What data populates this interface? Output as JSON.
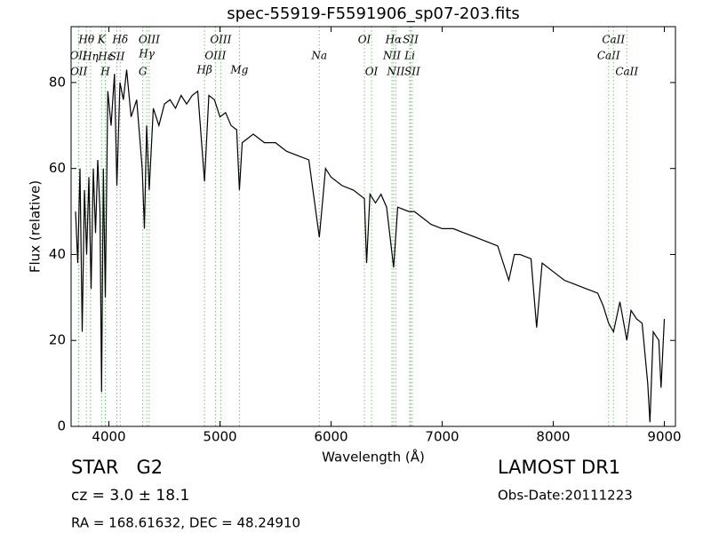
{
  "chart_data": {
    "type": "line",
    "title": "spec-55919-F5591906_sp07-203.fits",
    "x_label": "Wavelength (Å)",
    "y_label": "Flux (relative)",
    "xlim": [
      3660,
      9100
    ],
    "ylim": [
      0,
      93
    ],
    "xticks": [
      4000,
      5000,
      6000,
      7000,
      8000,
      9000
    ],
    "yticks": [
      0,
      20,
      40,
      60,
      80
    ],
    "color": "#000000",
    "x": [
      3700,
      3720,
      3740,
      3760,
      3780,
      3800,
      3820,
      3840,
      3860,
      3880,
      3900,
      3920,
      3934,
      3950,
      3968,
      3990,
      4020,
      4050,
      4072,
      4100,
      4130,
      4160,
      4200,
      4250,
      4300,
      4320,
      4340,
      4363,
      4400,
      4450,
      4500,
      4550,
      4600,
      4650,
      4700,
      4750,
      4800,
      4861,
      4900,
      4950,
      5000,
      5050,
      5100,
      5150,
      5175,
      5200,
      5300,
      5400,
      5500,
      5600,
      5700,
      5800,
      5894,
      5950,
      6000,
      6100,
      6200,
      6300,
      6320,
      6350,
      6400,
      6450,
      6500,
      6563,
      6600,
      6700,
      6750,
      6800,
      6900,
      7000,
      7100,
      7200,
      7300,
      7400,
      7500,
      7600,
      7650,
      7700,
      7800,
      7850,
      7900,
      8000,
      8100,
      8200,
      8300,
      8400,
      8450,
      8498,
      8542,
      8600,
      8662,
      8700,
      8750,
      8800,
      8850,
      8870,
      8900,
      8950,
      8970,
      9000
    ],
    "values": [
      50,
      38,
      60,
      22,
      55,
      40,
      58,
      32,
      60,
      45,
      62,
      50,
      8,
      60,
      30,
      78,
      70,
      82,
      56,
      80,
      76,
      83,
      72,
      76,
      60,
      46,
      70,
      55,
      74,
      70,
      75,
      76,
      74,
      77,
      75,
      77,
      78,
      57,
      77,
      76,
      72,
      73,
      70,
      69,
      55,
      66,
      68,
      66,
      66,
      64,
      63,
      62,
      44,
      60,
      58,
      56,
      55,
      53,
      38,
      54,
      52,
      54,
      51,
      37,
      51,
      50,
      50,
      49,
      47,
      46,
      46,
      45,
      44,
      43,
      42,
      34,
      40,
      40,
      39,
      23,
      38,
      36,
      34,
      33,
      32,
      31,
      28,
      24,
      22,
      29,
      20,
      27,
      25,
      24,
      10,
      1,
      22,
      20,
      9,
      25
    ],
    "line_color": "#7fbf7f",
    "lines": [
      {
        "label": "OII",
        "wavelength": 3726
      },
      {
        "label": "OII",
        "wavelength": 3729
      },
      {
        "label": "Hθ",
        "wavelength": 3798
      },
      {
        "label": "Hη",
        "wavelength": 3835
      },
      {
        "label": "K",
        "wavelength": 3934
      },
      {
        "label": "H",
        "wavelength": 3968
      },
      {
        "label": "Hε",
        "wavelength": 3970
      },
      {
        "label": "SII",
        "wavelength": 4072
      },
      {
        "label": "Hδ",
        "wavelength": 4102
      },
      {
        "label": "G",
        "wavelength": 4305
      },
      {
        "label": "Hγ",
        "wavelength": 4341
      },
      {
        "label": "OIII",
        "wavelength": 4363
      },
      {
        "label": "Hβ",
        "wavelength": 4861
      },
      {
        "label": "OIII",
        "wavelength": 4959
      },
      {
        "label": "OIII",
        "wavelength": 5007
      },
      {
        "label": "Mg",
        "wavelength": 5175
      },
      {
        "label": "Na",
        "wavelength": 5894
      },
      {
        "label": "OI",
        "wavelength": 6300
      },
      {
        "label": "OI",
        "wavelength": 6364
      },
      {
        "label": "NII",
        "wavelength": 6548
      },
      {
        "label": "Hα",
        "wavelength": 6563
      },
      {
        "label": "NII",
        "wavelength": 6583
      },
      {
        "label": "Li",
        "wavelength": 6708
      },
      {
        "label": "SII",
        "wavelength": 6716
      },
      {
        "label": "SII",
        "wavelength": 6731
      },
      {
        "label": "CaII",
        "wavelength": 8498
      },
      {
        "label": "CaII",
        "wavelength": 8542
      },
      {
        "label": "CaII",
        "wavelength": 8662
      }
    ]
  },
  "info": {
    "class": "STAR   G2",
    "cz": "cz = 3.0 ± 18.1",
    "coords": "RA = 168.61632, DEC = 48.24910",
    "survey": "LAMOST DR1",
    "obs_date": "Obs-Date:20111223"
  }
}
